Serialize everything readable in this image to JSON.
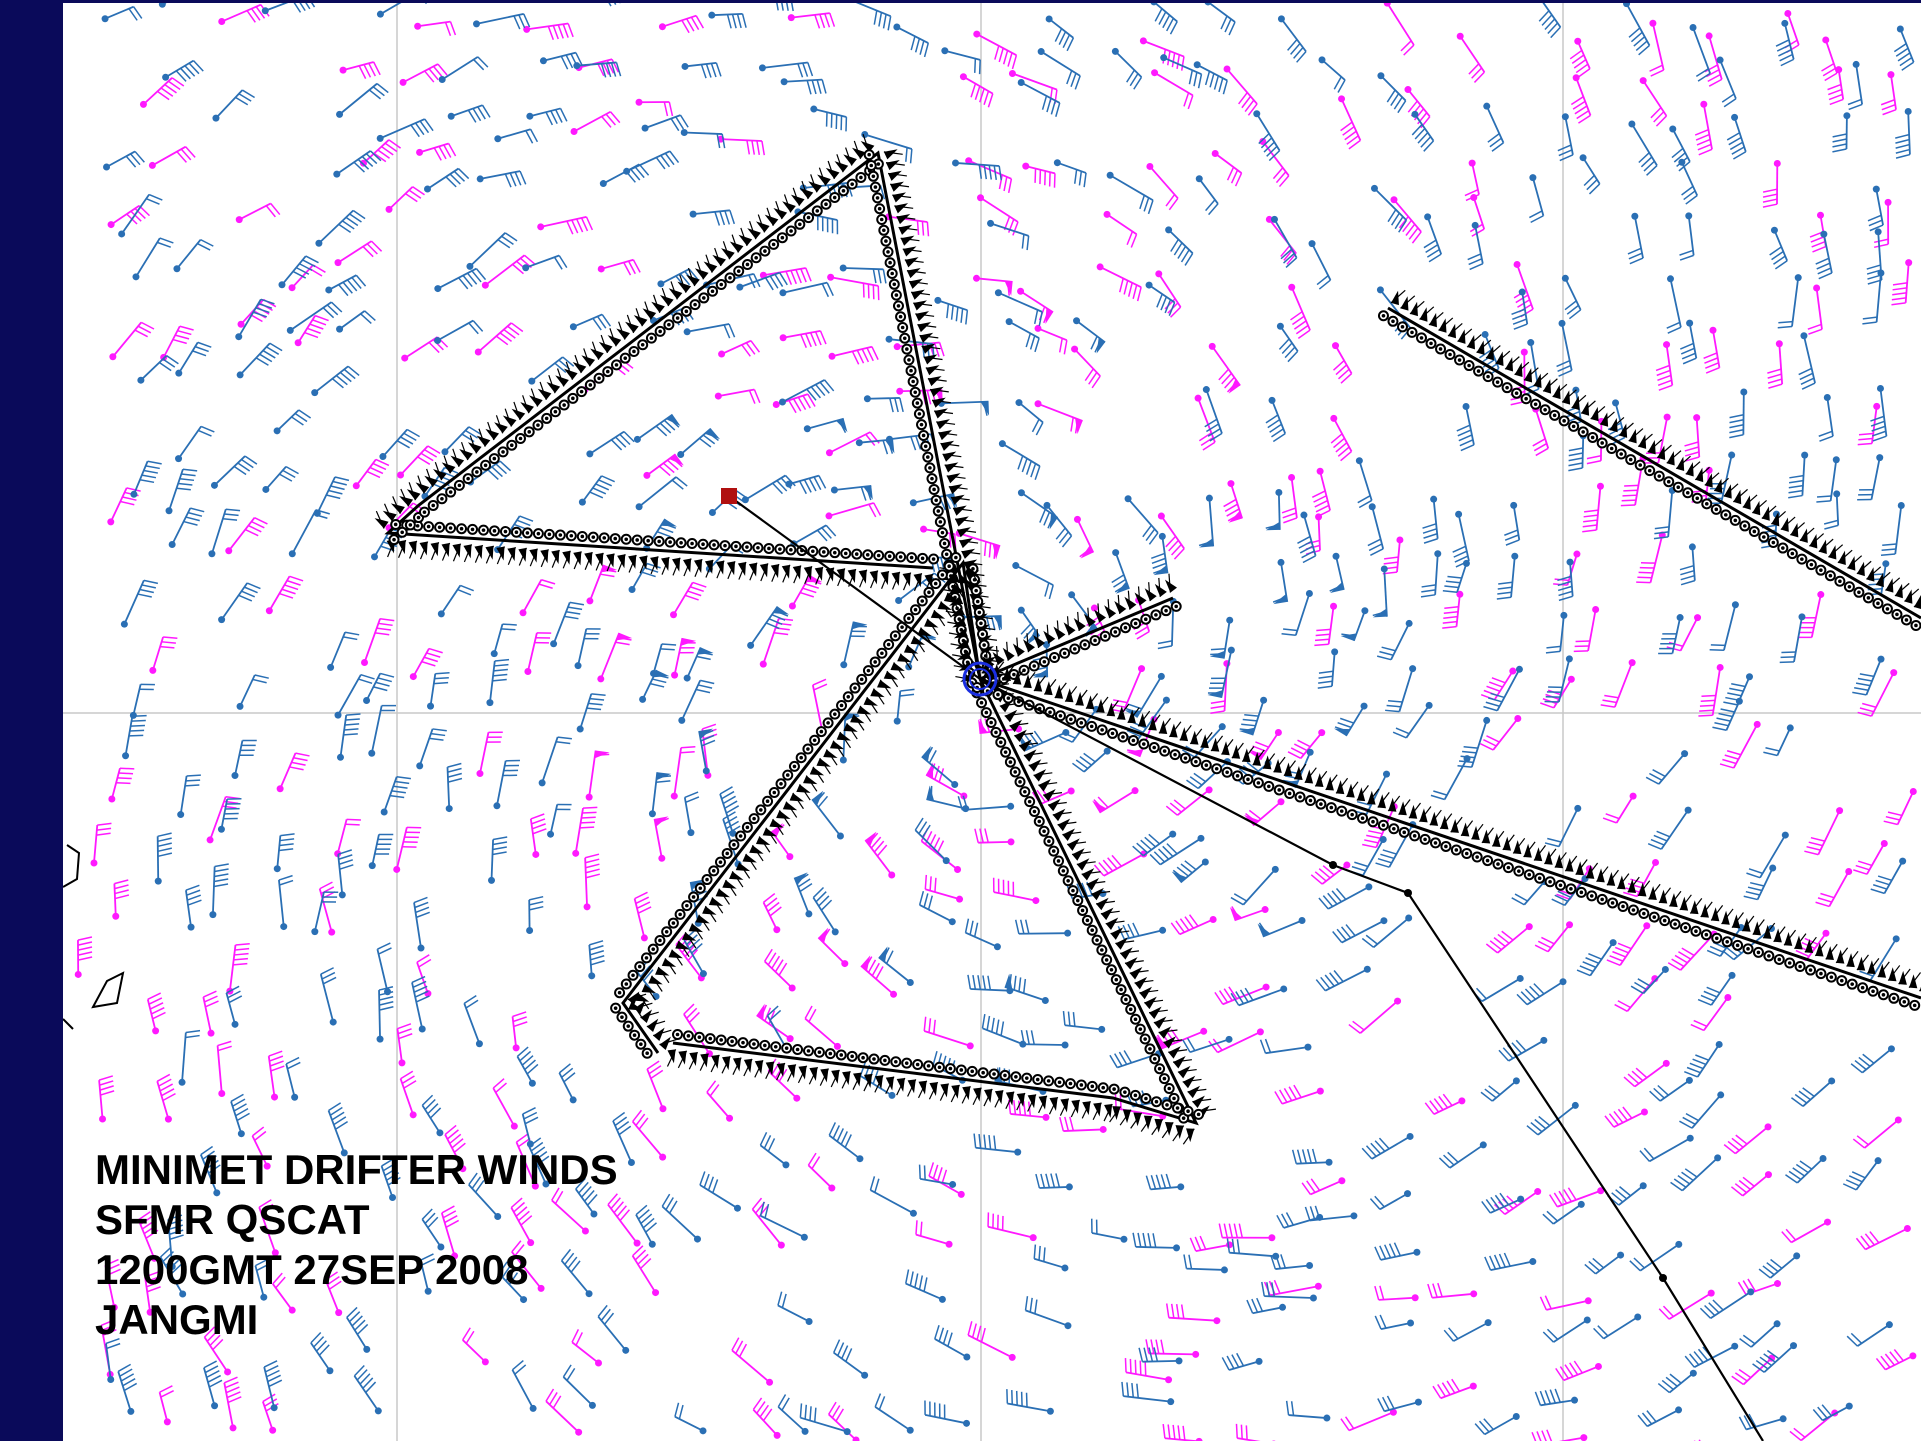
{
  "caption": {
    "line1": "MINIMET DRIFTER WINDS",
    "line2": "SFMR QSCAT",
    "line3": "1200GMT 27SEP 2008",
    "line4": "JANGMI"
  },
  "colors": {
    "frame": "#0a0a5a",
    "qscat_barbs": "#ff19ff",
    "sfmr_barbs": "#2a6fb4",
    "flight_track": "#000000",
    "drifter_marker": "#b01010",
    "storm_center": "#1a2ee0",
    "gridline": "#c8c8c8"
  },
  "icons": {
    "storm_center": "storm-center-icon",
    "drifter": "drifter-marker-icon"
  }
}
